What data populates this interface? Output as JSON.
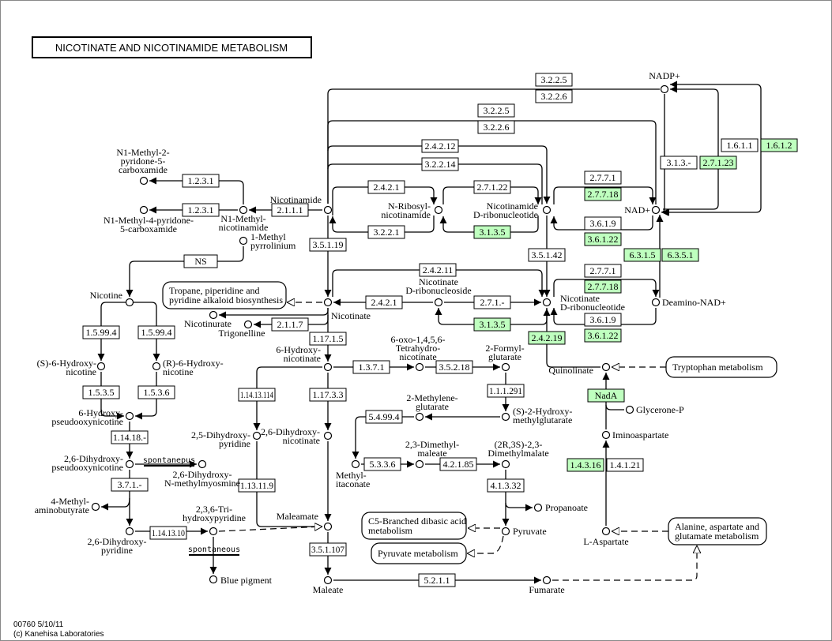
{
  "title": "NICOTINATE AND NICOTINAMIDE METABOLISM",
  "footer": {
    "line1": "00760 5/10/11",
    "line2": "(c) Kanehisa Laboratories"
  },
  "colors": {
    "highlight": "#bfffbf",
    "line": "#000000",
    "background": "#ffffff"
  },
  "spontaneous": [
    "spontanepus",
    "spontaneous"
  ],
  "maps": [
    {
      "lines": [
        "Tropane, piperidine and",
        "pyridine alkaloid biosynthesis"
      ]
    },
    {
      "lines": [
        "Tryptophan metabolism"
      ]
    },
    {
      "lines": [
        "C5-Branched dibasic acid",
        "metabolism"
      ]
    },
    {
      "lines": [
        "Pyruvate metabolism"
      ]
    },
    {
      "lines": [
        "Alanine, aspartate and",
        "glutamate metabolism"
      ]
    }
  ],
  "compounds": [
    {
      "id": "nadp",
      "lines": [
        "NADP+"
      ]
    },
    {
      "id": "nad",
      "lines": [
        "NAD+"
      ]
    },
    {
      "id": "nicotinamide",
      "lines": [
        "Nicotinamide"
      ]
    },
    {
      "id": "n1mnam",
      "lines": [
        "N1-Methyl-",
        "nicotinamide"
      ]
    },
    {
      "id": "n1m2p",
      "lines": [
        "N1-Methyl-2-",
        "pyridone-5-",
        "carboxamide"
      ]
    },
    {
      "id": "n1m4p",
      "lines": [
        "N1-Methyl-4-pyridone-",
        "5-carboxamide"
      ]
    },
    {
      "id": "mpyr",
      "lines": [
        "1-Methyl",
        "pyrrolinium"
      ]
    },
    {
      "id": "nrn",
      "lines": [
        "N-Ribosyl-",
        "nicotinamide"
      ]
    },
    {
      "id": "nmn",
      "lines": [
        "Nicotinamide",
        "D-ribonucleotide"
      ]
    },
    {
      "id": "nicotinate",
      "lines": [
        "Nicotinate"
      ]
    },
    {
      "id": "nar",
      "lines": [
        "Nicotinate",
        "D-ribonucleoside"
      ]
    },
    {
      "id": "namn",
      "lines": [
        "Nicotinate",
        "D-ribonucleotide"
      ]
    },
    {
      "id": "deamino",
      "lines": [
        "Deamino-NAD+"
      ]
    },
    {
      "id": "nicotine",
      "lines": [
        "Nicotine"
      ]
    },
    {
      "id": "nicotinurate",
      "lines": [
        "Nicotinurate"
      ]
    },
    {
      "id": "trigonelline",
      "lines": [
        "Trigonelline"
      ]
    },
    {
      "id": "s6h",
      "lines": [
        "(S)-6-Hydroxy-",
        "nicotine"
      ]
    },
    {
      "id": "r6h",
      "lines": [
        "(R)-6-Hydroxy-",
        "nicotine"
      ]
    },
    {
      "id": "hpon",
      "lines": [
        "6-Hydroxy-",
        "pseudooxynicotine"
      ]
    },
    {
      "id": "dhpon",
      "lines": [
        "2,6-Dihydroxy-",
        "pseudooxynicotine"
      ]
    },
    {
      "id": "myosmine",
      "lines": [
        "2,6-Dihydroxy-",
        "N-methylmyosmine"
      ]
    },
    {
      "id": "mab",
      "lines": [
        "4-Methyl-",
        "aminobutyrate"
      ]
    },
    {
      "id": "dhp26",
      "lines": [
        "2,6-Dihydroxy-",
        "pyridine"
      ]
    },
    {
      "id": "thp",
      "lines": [
        "2,3,6-Tri-",
        "hydroxypyridine"
      ]
    },
    {
      "id": "blue",
      "lines": [
        "Blue pigment"
      ]
    },
    {
      "id": "hn6",
      "lines": [
        "6-Hydroxy-",
        "nicotinate"
      ]
    },
    {
      "id": "oxo",
      "lines": [
        "6-oxo-1,4,5,6-",
        "Tetrahydro-",
        "nicotinate"
      ]
    },
    {
      "id": "fg",
      "lines": [
        "2-Formyl-",
        "glutarate"
      ]
    },
    {
      "id": "shmg",
      "lines": [
        "(S)-2-Hydroxy-",
        "methylglutarate"
      ]
    },
    {
      "id": "mg",
      "lines": [
        "2-Methylene-",
        "glutarate"
      ]
    },
    {
      "id": "dhp25",
      "lines": [
        "2,5-Dihydroxy-",
        "pyridine"
      ]
    },
    {
      "id": "dhn",
      "lines": [
        "2,6-Dihydroxy-",
        "nicotinate"
      ]
    },
    {
      "id": "mi",
      "lines": [
        "Methyl-",
        "itaconate"
      ]
    },
    {
      "id": "dmm",
      "lines": [
        "2,3-Dimethyl-",
        "maleate"
      ]
    },
    {
      "id": "dmmal",
      "lines": [
        "(2R,3S)-2,3-",
        "Dimethylmalate"
      ]
    },
    {
      "id": "propanoate",
      "lines": [
        "Propanoate"
      ]
    },
    {
      "id": "pyruvate",
      "lines": [
        "Pyruvate"
      ]
    },
    {
      "id": "maleamate",
      "lines": [
        "Maleamate"
      ]
    },
    {
      "id": "maleate",
      "lines": [
        "Maleate"
      ]
    },
    {
      "id": "fumarate",
      "lines": [
        "Fumarate"
      ]
    },
    {
      "id": "quinolinate",
      "lines": [
        "Quinolinate"
      ]
    },
    {
      "id": "glycerone",
      "lines": [
        "Glycerone-P"
      ]
    },
    {
      "id": "imino",
      "lines": [
        "Iminoaspartate"
      ]
    },
    {
      "id": "asp",
      "lines": [
        "L-Aspartate"
      ]
    }
  ],
  "enzymes": [
    {
      "label": "3.2.2.5",
      "highlighted": false
    },
    {
      "label": "3.2.2.6",
      "highlighted": false
    },
    {
      "label": "3.2.2.5",
      "highlighted": false
    },
    {
      "label": "3.2.2.6",
      "highlighted": false
    },
    {
      "label": "2.4.2.12",
      "highlighted": false
    },
    {
      "label": "3.2.2.14",
      "highlighted": false
    },
    {
      "label": "2.4.2.1",
      "highlighted": false
    },
    {
      "label": "3.2.2.1",
      "highlighted": false
    },
    {
      "label": "2.7.1.22",
      "highlighted": false
    },
    {
      "label": "3.1.3.5",
      "highlighted": true
    },
    {
      "label": "1.2.3.1",
      "highlighted": false
    },
    {
      "label": "1.2.3.1",
      "highlighted": false
    },
    {
      "label": "2.1.1.1",
      "highlighted": false
    },
    {
      "label": "3.5.1.19",
      "highlighted": false
    },
    {
      "label": "NS",
      "highlighted": false
    },
    {
      "label": "2.7.7.1",
      "highlighted": false
    },
    {
      "label": "2.7.7.18",
      "highlighted": true
    },
    {
      "label": "3.6.1.9",
      "highlighted": false
    },
    {
      "label": "3.6.1.22",
      "highlighted": true
    },
    {
      "label": "3.1.3.-",
      "highlighted": false
    },
    {
      "label": "2.7.1.23",
      "highlighted": true
    },
    {
      "label": "1.6.1.1",
      "highlighted": false
    },
    {
      "label": "1.6.1.2",
      "highlighted": true
    },
    {
      "label": "6.3.1.5",
      "highlighted": true
    },
    {
      "label": "6.3.5.1",
      "highlighted": true
    },
    {
      "label": "3.5.1.42",
      "highlighted": false
    },
    {
      "label": "2.4.2.11",
      "highlighted": false
    },
    {
      "label": "2.4.2.1",
      "highlighted": false
    },
    {
      "label": "2.7.1.-",
      "highlighted": false
    },
    {
      "label": "3.1.3.5",
      "highlighted": true
    },
    {
      "label": "2.7.7.1",
      "highlighted": false
    },
    {
      "label": "2.7.7.18",
      "highlighted": true
    },
    {
      "label": "3.6.1.9",
      "highlighted": false
    },
    {
      "label": "3.6.1.22",
      "highlighted": true
    },
    {
      "label": "2.4.2.19",
      "highlighted": true
    },
    {
      "label": "2.1.1.7",
      "highlighted": false
    },
    {
      "label": "1.5.99.4",
      "highlighted": false
    },
    {
      "label": "1.5.99.4",
      "highlighted": false
    },
    {
      "label": "1.17.1.5",
      "highlighted": false
    },
    {
      "label": "1.3.7.1",
      "highlighted": false
    },
    {
      "label": "3.5.2.18",
      "highlighted": false
    },
    {
      "label": "NadA",
      "highlighted": true
    },
    {
      "label": "1.1.1.291",
      "highlighted": false
    },
    {
      "label": "1.5.3.5",
      "highlighted": false
    },
    {
      "label": "1.5.3.6",
      "highlighted": false
    },
    {
      "label": "1.14.13.114",
      "highlighted": false
    },
    {
      "label": "1.17.3.3",
      "highlighted": false
    },
    {
      "label": "5.4.99.4",
      "highlighted": false
    },
    {
      "label": "1.14.18.-",
      "highlighted": false
    },
    {
      "label": "5.3.3.6",
      "highlighted": false
    },
    {
      "label": "4.2.1.85",
      "highlighted": false
    },
    {
      "label": "1.4.3.16",
      "highlighted": true
    },
    {
      "label": "1.4.1.21",
      "highlighted": false
    },
    {
      "label": "3.7.1.-",
      "highlighted": false
    },
    {
      "label": "1.13.11.9",
      "highlighted": false
    },
    {
      "label": "4.1.3.32",
      "highlighted": false
    },
    {
      "label": "1.14.13.10",
      "highlighted": false
    },
    {
      "label": "3.5.1.107",
      "highlighted": false
    },
    {
      "label": "5.2.1.1",
      "highlighted": false
    }
  ]
}
